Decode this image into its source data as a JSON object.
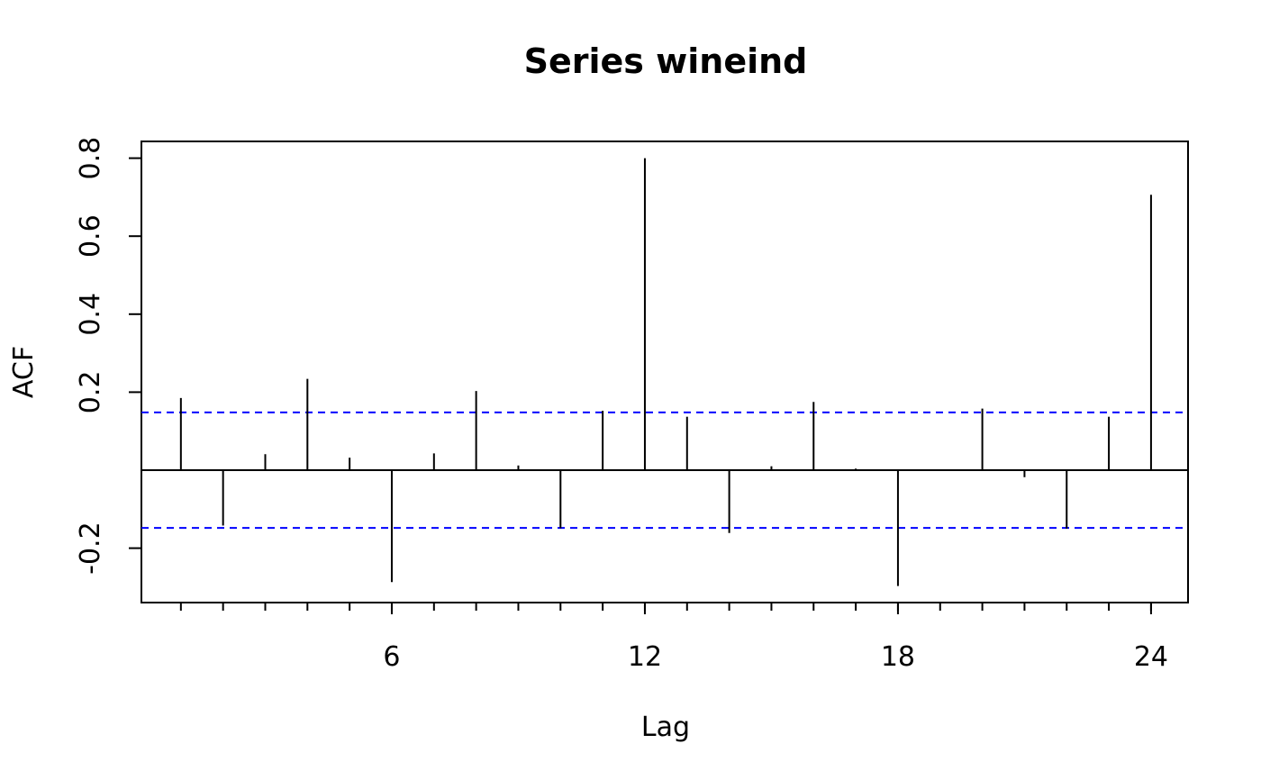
{
  "chart_data": {
    "type": "bar",
    "title": "Series  wineind",
    "xlabel": "Lag",
    "ylabel": "ACF",
    "x_ticks": [
      6,
      12,
      18,
      24
    ],
    "y_ticks": [
      -0.2,
      0.2,
      0.4,
      0.6,
      0.8
    ],
    "y_tick_labels": [
      "-0.2",
      "0.2",
      "0.4",
      "0.6",
      "0.8"
    ],
    "xlim": [
      0,
      25
    ],
    "ylim": [
      -0.335,
      0.845
    ],
    "series": [
      {
        "lags": [
          1,
          2,
          3,
          4,
          5,
          6,
          7,
          8,
          9,
          10,
          11,
          12,
          13,
          14,
          15,
          16,
          17,
          18,
          19,
          20,
          21,
          22,
          23,
          24
        ],
        "values": [
          0.185,
          -0.142,
          0.041,
          0.234,
          0.032,
          -0.287,
          0.043,
          0.203,
          0.012,
          -0.149,
          0.152,
          0.8,
          0.137,
          -0.161,
          0.01,
          0.175,
          0.004,
          -0.297,
          -0.002,
          0.158,
          -0.018,
          -0.15,
          0.137,
          0.706
        ]
      }
    ],
    "confidence_band": [
      -0.148,
      0.148
    ],
    "colors": {
      "bars": "#000000",
      "confidence": "#0000ff"
    }
  }
}
